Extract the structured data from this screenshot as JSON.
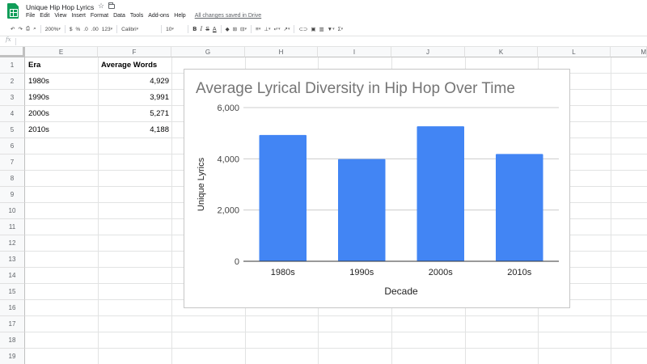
{
  "app": {
    "doc_title": "Unique Hip Hop Lyrics",
    "menu": [
      "File",
      "Edit",
      "View",
      "Insert",
      "Format",
      "Data",
      "Tools",
      "Add-ons",
      "Help"
    ],
    "save_status": "All changes saved in Drive"
  },
  "toolbar": {
    "undo": "↶",
    "redo": "↷",
    "print": "⎙",
    "paint_format": "⌕",
    "zoom": "200%",
    "currency": "$",
    "percent": "%",
    "decrease_decimals": ".0",
    "increase_decimals": ".00",
    "more_formats": "123",
    "font": "Calibri",
    "font_size": "10",
    "bold": "B",
    "italic": "I",
    "strikethrough": "S",
    "text_color": "A",
    "fill_color": "◆",
    "borders": "⊞",
    "merge": "⊟",
    "h_align": "≡",
    "v_align": "⊥",
    "wrap": "↵",
    "rotate": "↗",
    "link": "⊂⊃",
    "comment": "▣",
    "insert_chart": "▥",
    "filter": "▼",
    "functions": "Σ",
    "fx": "fx"
  },
  "grid": {
    "columns": [
      "E",
      "F",
      "G",
      "H",
      "I",
      "J",
      "K",
      "L",
      "M"
    ],
    "rows": [
      "1",
      "2",
      "3",
      "4",
      "5",
      "6",
      "7",
      "8",
      "9",
      "10",
      "11",
      "12",
      "13",
      "14",
      "15",
      "16",
      "17",
      "18",
      "19"
    ],
    "headers": [
      "Era",
      "Average Words"
    ],
    "data": [
      [
        "1980s",
        "4,929"
      ],
      [
        "1990s",
        "3,991"
      ],
      [
        "2000s",
        "5,271"
      ],
      [
        "2010s",
        "4,188"
      ]
    ]
  },
  "chart_data": {
    "type": "bar",
    "title": "Average Lyrical Diversity in Hip Hop Over Time",
    "xlabel": "Decade",
    "ylabel": "Unique Lyrics",
    "categories": [
      "1980s",
      "1990s",
      "2000s",
      "2010s"
    ],
    "values": [
      4929,
      3991,
      5271,
      4188
    ],
    "ylim": [
      0,
      6000
    ],
    "yticks": [
      0,
      2000,
      4000,
      6000
    ],
    "ytick_labels": [
      "0",
      "2,000",
      "4,000",
      "6,000"
    ],
    "bar_color": "#4285f4",
    "grid": true,
    "legend": "none"
  },
  "colors": {
    "brand": "#0f9d58",
    "title_text": "#757575"
  }
}
